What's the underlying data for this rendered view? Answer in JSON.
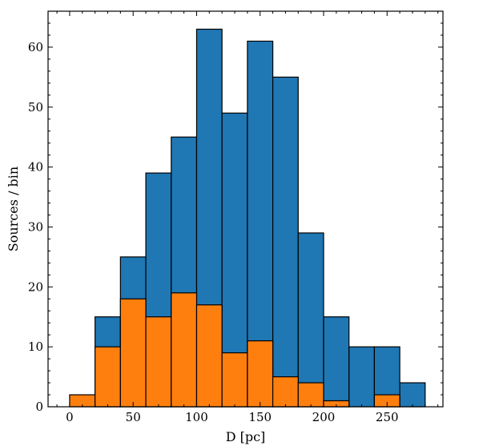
{
  "chart_data": {
    "type": "bar",
    "subtype": "histogram",
    "title": "",
    "xlabel": "D [pc]",
    "ylabel": "Sources / bin",
    "xlim": [
      -17,
      294
    ],
    "ylim": [
      0,
      66
    ],
    "x_ticks": [
      0,
      50,
      100,
      150,
      200,
      250
    ],
    "y_ticks": [
      0,
      10,
      20,
      30,
      40,
      50,
      60
    ],
    "x_tick_labels": [
      "0",
      "50",
      "100",
      "150",
      "200",
      "250"
    ],
    "y_tick_labels": [
      "0",
      "10",
      "20",
      "30",
      "40",
      "50",
      "60"
    ],
    "bin_edges": [
      0,
      20,
      40,
      60,
      80,
      100,
      120,
      140,
      160,
      180,
      200,
      220,
      240,
      260,
      280
    ],
    "series": [
      {
        "color": "#1f77b4",
        "values": [
          0,
          15,
          25,
          39,
          45,
          63,
          49,
          61,
          55,
          29,
          15,
          10,
          10,
          4
        ]
      },
      {
        "color": "#ff7f0e",
        "values": [
          2,
          10,
          18,
          15,
          19,
          17,
          9,
          11,
          5,
          4,
          1,
          0,
          2,
          0
        ]
      }
    ],
    "grid": false,
    "legend": false
  }
}
